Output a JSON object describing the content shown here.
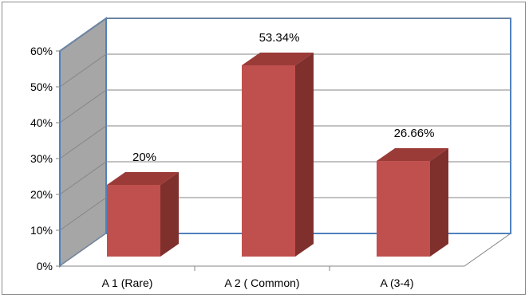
{
  "chart_data": {
    "type": "bar",
    "categories": [
      "A 1 (Rare)",
      "A 2 ( Common)",
      "A (3-4)"
    ],
    "values": [
      20,
      53.34,
      26.66
    ],
    "data_labels": [
      "20%",
      "53.34%",
      "26.66%"
    ],
    "ylim": [
      0,
      60
    ],
    "yticks": [
      0,
      10,
      20,
      30,
      40,
      50,
      60
    ],
    "ytick_labels": [
      "0%",
      "10%",
      "20%",
      "30%",
      "40%",
      "50%",
      "60%"
    ],
    "grid": true,
    "style": "3d",
    "colors": {
      "bar_front": "#c0504d",
      "bar_side": "#7f302d",
      "bar_top": "#9a3b38",
      "side_wall": "#a6a6a6",
      "wall_border": "#4f81bd",
      "gridline": "#868686"
    }
  }
}
